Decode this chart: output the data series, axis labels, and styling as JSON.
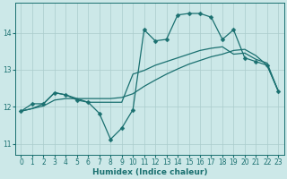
{
  "title": "",
  "xlabel": "Humidex (Indice chaleur)",
  "ylabel": "",
  "bg_color": "#cce8e8",
  "line_color": "#1a7070",
  "grid_color": "#aacccc",
  "xlim": [
    -0.5,
    23.5
  ],
  "ylim": [
    10.7,
    14.8
  ],
  "yticks": [
    11,
    12,
    13,
    14
  ],
  "xticks": [
    0,
    1,
    2,
    3,
    4,
    5,
    6,
    7,
    8,
    9,
    10,
    11,
    12,
    13,
    14,
    15,
    16,
    17,
    18,
    19,
    20,
    21,
    22,
    23
  ],
  "series1_x": [
    0,
    1,
    2,
    3,
    4,
    5,
    6,
    7,
    8,
    9,
    10,
    11,
    12,
    13,
    14,
    15,
    16,
    17,
    18,
    19,
    20,
    21,
    22,
    23
  ],
  "series1_y": [
    11.88,
    12.08,
    12.08,
    12.38,
    12.32,
    12.18,
    12.12,
    11.82,
    11.12,
    11.42,
    11.92,
    14.08,
    13.78,
    13.82,
    14.48,
    14.52,
    14.52,
    14.42,
    13.82,
    14.08,
    13.32,
    13.22,
    13.12,
    12.42
  ],
  "series2_x": [
    0,
    1,
    2,
    3,
    4,
    5,
    6,
    7,
    8,
    9,
    10,
    11,
    12,
    13,
    14,
    15,
    16,
    17,
    18,
    19,
    20,
    21,
    22,
    23
  ],
  "series2_y": [
    11.88,
    11.95,
    12.02,
    12.18,
    12.22,
    12.22,
    12.22,
    12.22,
    12.22,
    12.25,
    12.35,
    12.55,
    12.72,
    12.88,
    13.02,
    13.15,
    13.25,
    13.35,
    13.42,
    13.52,
    13.55,
    13.38,
    13.12,
    12.42
  ],
  "series3_x": [
    0,
    1,
    2,
    3,
    4,
    5,
    6,
    7,
    8,
    9,
    10,
    11,
    12,
    13,
    14,
    15,
    16,
    17,
    18,
    19,
    20,
    21,
    22,
    23
  ],
  "series3_y": [
    11.88,
    11.95,
    12.08,
    12.38,
    12.32,
    12.22,
    12.12,
    12.12,
    12.12,
    12.12,
    12.88,
    12.98,
    13.12,
    13.22,
    13.32,
    13.42,
    13.52,
    13.58,
    13.62,
    13.42,
    13.45,
    13.28,
    13.18,
    12.42
  ],
  "marker_size": 2.5,
  "linewidth": 0.9,
  "font_size_label": 6.5,
  "font_size_tick": 5.5
}
